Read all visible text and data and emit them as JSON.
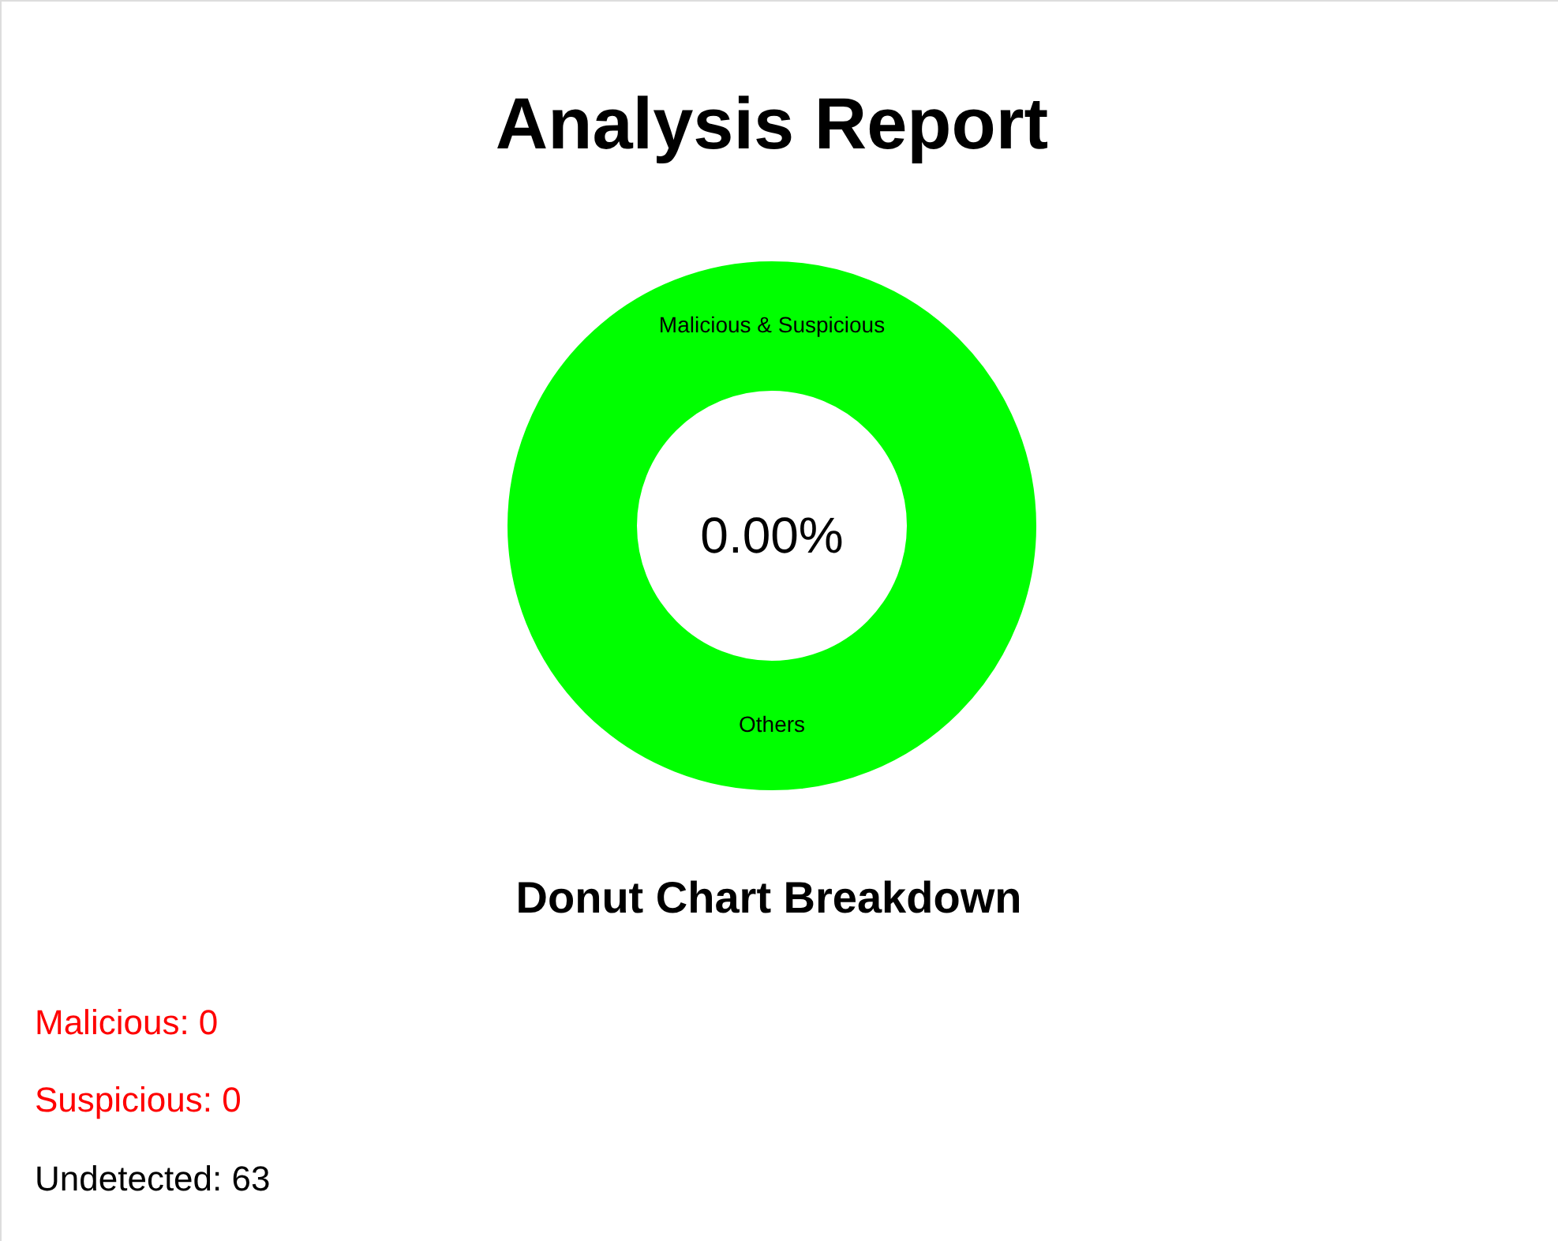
{
  "chart_data": {
    "type": "donut",
    "title": "Analysis Report",
    "categories": [
      "Malicious & Suspicious",
      "Others"
    ],
    "values": [
      0,
      100
    ],
    "colors": [
      "#ff0000",
      "#00ff00"
    ],
    "annotations": [
      "0.00%",
      "Donut Chart Breakdown",
      "Malicious: 0",
      "Suspicious: 0",
      "Undetected: 63"
    ]
  }
}
